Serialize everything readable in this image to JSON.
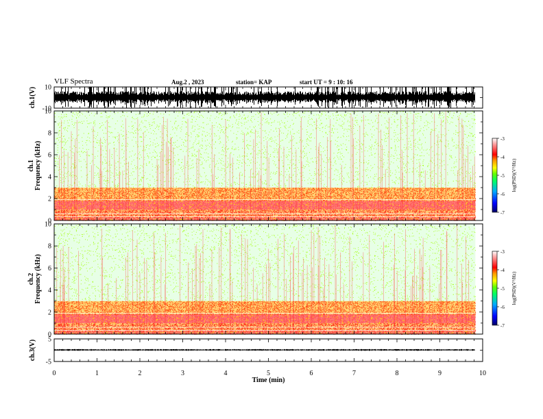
{
  "header": {
    "title": "VLF Spectra",
    "date": "Aug.2 , 2023",
    "station": "station= KAP",
    "start": "start UT = 9 : 10: 16"
  },
  "chart_data": [
    {
      "type": "line",
      "panel": "waveform-ch1",
      "ylabel": "ch.1(V)",
      "ylim": [
        -10,
        10
      ],
      "y_ticks": [
        "10",
        "-10"
      ],
      "x_unit": "min",
      "xlim": [
        0,
        10
      ],
      "data_extent": [
        0,
        9.83
      ],
      "envelope": {
        "baseline": 0,
        "typical_peak": 6,
        "max_peak": 10,
        "clipped_bursts": true
      }
    },
    {
      "type": "heatmap",
      "panel": "spectrogram-ch1",
      "ylabel": "ch.1\nFrequency (kHz)",
      "ylim": [
        0,
        10
      ],
      "y_ticks": [
        "0",
        "2",
        "4",
        "6",
        "8",
        "10"
      ],
      "xlim": [
        0,
        10
      ],
      "data_extent": [
        0,
        9.83
      ],
      "colorbar": {
        "label": "log(PSD)(V²/Hz)",
        "range": [
          -7,
          -3
        ],
        "ticks": [
          "-3",
          "-4",
          "-5",
          "-6",
          "-7"
        ]
      },
      "bands_khz": [
        {
          "f0": 0.0,
          "f1": 0.3,
          "level": -3.7
        },
        {
          "f0": 0.3,
          "f1": 1.0,
          "level": -3.9
        },
        {
          "f0": 1.0,
          "f1": 1.8,
          "level": -3.6
        },
        {
          "f0": 1.8,
          "f1": 3.0,
          "level": -4.0
        },
        {
          "f0": 3.0,
          "f1": 10.0,
          "level": -4.8
        }
      ]
    },
    {
      "type": "heatmap",
      "panel": "spectrogram-ch2",
      "ylabel": "ch.2\nFrequency (kHz)",
      "ylim": [
        0,
        10
      ],
      "y_ticks": [
        "0",
        "2",
        "4",
        "6",
        "8",
        "10"
      ],
      "xlim": [
        0,
        10
      ],
      "data_extent": [
        0,
        9.83
      ],
      "colorbar": {
        "label": "log(PSD)(V²/Hz)",
        "range": [
          -7,
          -3
        ],
        "ticks": [
          "-3",
          "-4",
          "-5",
          "-6",
          "-7"
        ]
      },
      "bands_khz": [
        {
          "f0": 0.0,
          "f1": 0.3,
          "level": -3.7
        },
        {
          "f0": 0.3,
          "f1": 1.0,
          "level": -3.9
        },
        {
          "f0": 1.0,
          "f1": 1.8,
          "level": -3.6
        },
        {
          "f0": 1.8,
          "f1": 3.0,
          "level": -4.0
        },
        {
          "f0": 3.0,
          "f1": 10.0,
          "level": -4.8
        }
      ]
    },
    {
      "type": "line",
      "panel": "waveform-ch3",
      "ylabel": "ch.3(V)",
      "ylim": [
        -5,
        5
      ],
      "y_ticks": [
        "5",
        "-5"
      ],
      "xlim": [
        0,
        10
      ],
      "data_extent": [
        0,
        9.83
      ],
      "envelope": {
        "baseline": 0.1,
        "typical_peak": 0.4,
        "max_peak": 0.6,
        "clipped_bursts": false
      }
    }
  ],
  "xaxis": {
    "label": "Time (min)",
    "ticks": [
      "0",
      "1",
      "2",
      "3",
      "4",
      "5",
      "6",
      "7",
      "8",
      "9",
      "10"
    ]
  },
  "colors": {
    "background": "#ffffff",
    "trace": "#000000",
    "colormap": [
      "#000066",
      "#0000ff",
      "#00aaff",
      "#00ff66",
      "#66ff00",
      "#ffff00",
      "#ff9900",
      "#ff0000",
      "#ff8888",
      "#ffffff"
    ]
  }
}
